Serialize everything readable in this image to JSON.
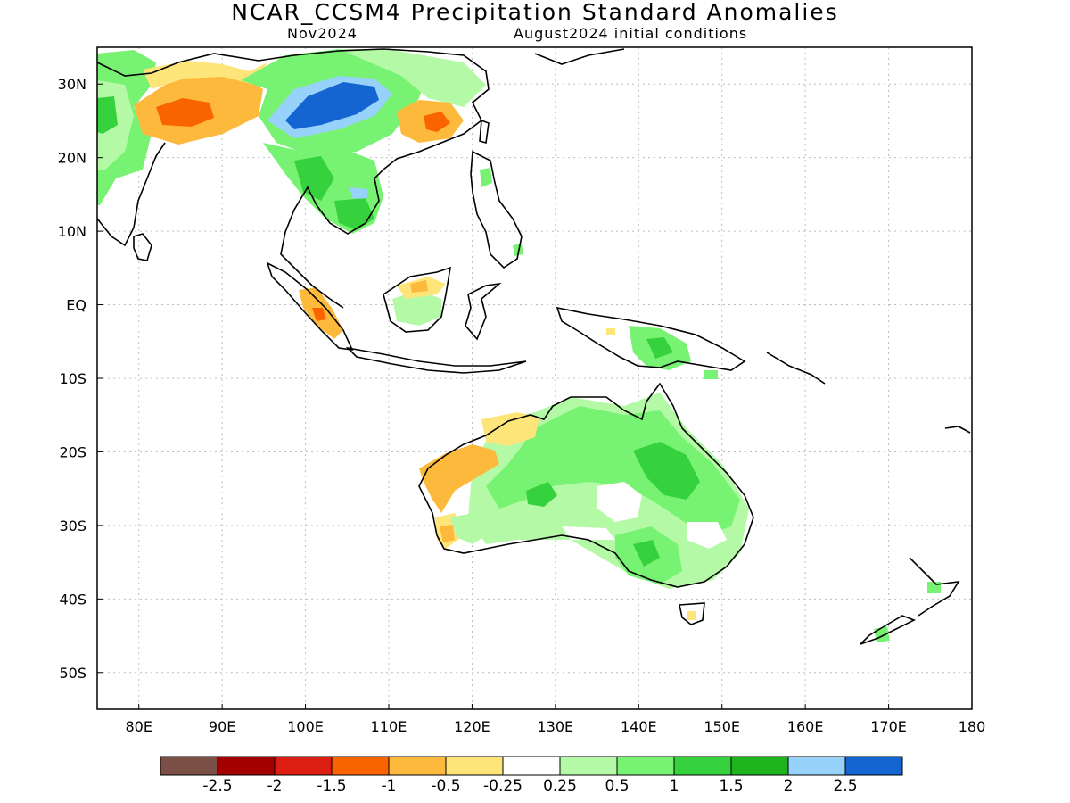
{
  "title": "NCAR_CCSM4 Precipitation Standard Anomalies",
  "subtitle_left": "Nov2024",
  "subtitle_right": "August2024 initial conditions",
  "map": {
    "lon_range": [
      75,
      180
    ],
    "lat_range": [
      -55,
      35
    ],
    "lat_ticks": [
      {
        "value": 30,
        "label": "30N"
      },
      {
        "value": 20,
        "label": "20N"
      },
      {
        "value": 10,
        "label": "10N"
      },
      {
        "value": 0,
        "label": "EQ"
      },
      {
        "value": -10,
        "label": "10S"
      },
      {
        "value": -20,
        "label": "20S"
      },
      {
        "value": -30,
        "label": "30S"
      },
      {
        "value": -40,
        "label": "40S"
      },
      {
        "value": -50,
        "label": "50S"
      }
    ],
    "lon_ticks": [
      {
        "value": 80,
        "label": "80E"
      },
      {
        "value": 90,
        "label": "90E"
      },
      {
        "value": 100,
        "label": "100E"
      },
      {
        "value": 110,
        "label": "110E"
      },
      {
        "value": 120,
        "label": "120E"
      },
      {
        "value": 130,
        "label": "130E"
      },
      {
        "value": 140,
        "label": "140E"
      },
      {
        "value": 150,
        "label": "150E"
      },
      {
        "value": 160,
        "label": "160E"
      },
      {
        "value": 170,
        "label": "170E"
      },
      {
        "value": 180,
        "label": "180"
      }
    ]
  },
  "colorbar": {
    "colors": [
      "#7a5046",
      "#a50000",
      "#dc1e12",
      "#fa6400",
      "#fdb93b",
      "#fee57a",
      "#ffffff",
      "#b4faa6",
      "#78f273",
      "#36d23e",
      "#1eb41e",
      "#96d2fa",
      "#1464d2"
    ],
    "labels": [
      "-2.5",
      "-2",
      "-1.5",
      "-1",
      "-0.5",
      "-0.25",
      "0.25",
      "0.5",
      "1",
      "1.5",
      "2",
      "2.5"
    ]
  }
}
